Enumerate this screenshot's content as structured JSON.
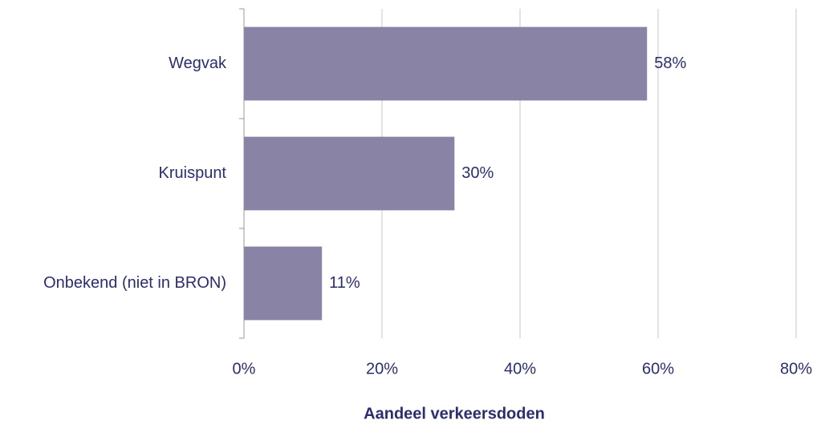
{
  "chart_data": {
    "type": "bar",
    "orientation": "horizontal",
    "categories": [
      "Wegvak",
      "Kruispunt",
      "Onbekend (niet in BRON)"
    ],
    "values": [
      58.4,
      30.5,
      11.3
    ],
    "value_labels": [
      "58%",
      "30%",
      "11%"
    ],
    "color": "#8983a6",
    "xlabel": "Aandeel verkeersdoden",
    "xlim": [
      0,
      80
    ],
    "xticks": [
      {
        "value": 0,
        "label": "0%"
      },
      {
        "value": 20,
        "label": "20%"
      },
      {
        "value": 40,
        "label": "40%"
      },
      {
        "value": 60,
        "label": "60%"
      },
      {
        "value": 80,
        "label": "80%"
      }
    ],
    "grid": true
  }
}
